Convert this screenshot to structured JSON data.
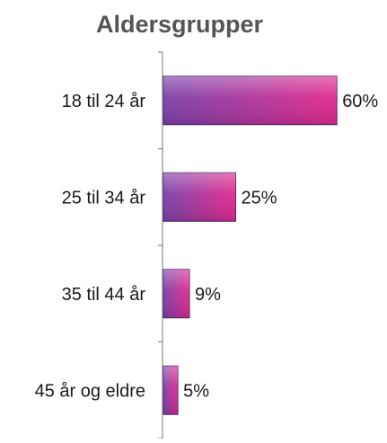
{
  "chart_data": {
    "type": "bar",
    "orientation": "horizontal",
    "title": "Aldersgrupper",
    "categories": [
      "18 til 24 år",
      "25 til 34 år",
      "35 til 44 år",
      "45 år og eldre"
    ],
    "values": [
      60,
      25,
      9,
      5
    ],
    "value_labels": [
      "60%",
      "25%",
      "9%",
      "5%"
    ],
    "unit": "%",
    "xlim": [
      0,
      100
    ],
    "grid": false,
    "legend": "none",
    "colors": {
      "bar_left": "#7a3fa8",
      "bar_right": "#e0288c",
      "bar_edge": "#4d2470",
      "axis": "#8c8c8c",
      "text": "#1a1a1a",
      "title_text": "#555555"
    }
  }
}
